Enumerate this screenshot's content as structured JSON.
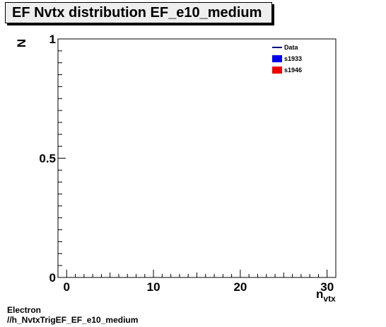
{
  "chart_data": {
    "type": "line",
    "title": "EF Nvtx distribution EF_e10_medium",
    "xlabel": "n",
    "xlabel_sub": "vtx",
    "ylabel": "N",
    "xlim": [
      -1,
      31
    ],
    "ylim": [
      0,
      1
    ],
    "x_ticks": [
      "0",
      "10",
      "20",
      "30"
    ],
    "y_ticks": [
      "0",
      "0.5",
      "1"
    ],
    "grid": false,
    "legend_position": "top-right",
    "series": [
      {
        "name": "Data",
        "style": "line",
        "color": "#000080",
        "values": []
      },
      {
        "name": "s1933",
        "style": "fill",
        "color": "#0000ee",
        "values": []
      },
      {
        "name": "s1946",
        "style": "fill",
        "color": "#ee0000",
        "values": []
      }
    ]
  },
  "footer": {
    "line1": "Electron",
    "line2": "//h_NvtxTrigEF_EF_e10_medium"
  }
}
